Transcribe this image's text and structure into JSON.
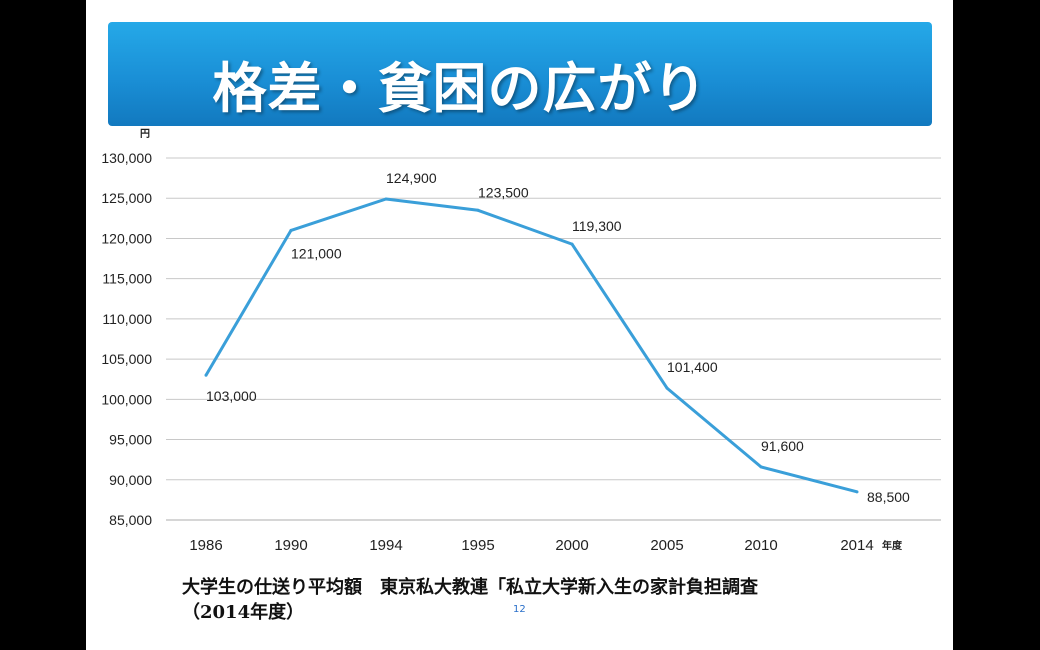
{
  "slide": {
    "title": "格差・貧困の広がり",
    "caption_line1": "大学生の仕送り平均額　東京私大教連「私立大学新入生の家計負担調査",
    "caption_line2": "（2014年度）",
    "page_number": "12"
  },
  "colors": {
    "banner": "#1a8fd6",
    "line": "#3a9fd9",
    "grid": "#c8c8c8"
  },
  "chart_data": {
    "type": "line",
    "categories": [
      "1986",
      "1990",
      "1994",
      "1995",
      "2000",
      "2005",
      "2010",
      "2014"
    ],
    "values": [
      103000,
      121000,
      124900,
      123500,
      119300,
      101400,
      91600,
      88500
    ],
    "data_labels": [
      "103,000",
      "121,000",
      "124,900",
      "123,500",
      "119,300",
      "101,400",
      "91,600",
      "88,500"
    ],
    "ylabel": "円",
    "xlabel": "年度",
    "ylim": [
      85000,
      130000
    ],
    "yticks": [
      85000,
      90000,
      95000,
      100000,
      105000,
      110000,
      115000,
      120000,
      125000,
      130000
    ],
    "ytick_labels": [
      "85,000",
      "90,000",
      "95,000",
      "100,000",
      "105,000",
      "110,000",
      "115,000",
      "120,000",
      "125,000",
      "130,000"
    ],
    "grid": true
  }
}
